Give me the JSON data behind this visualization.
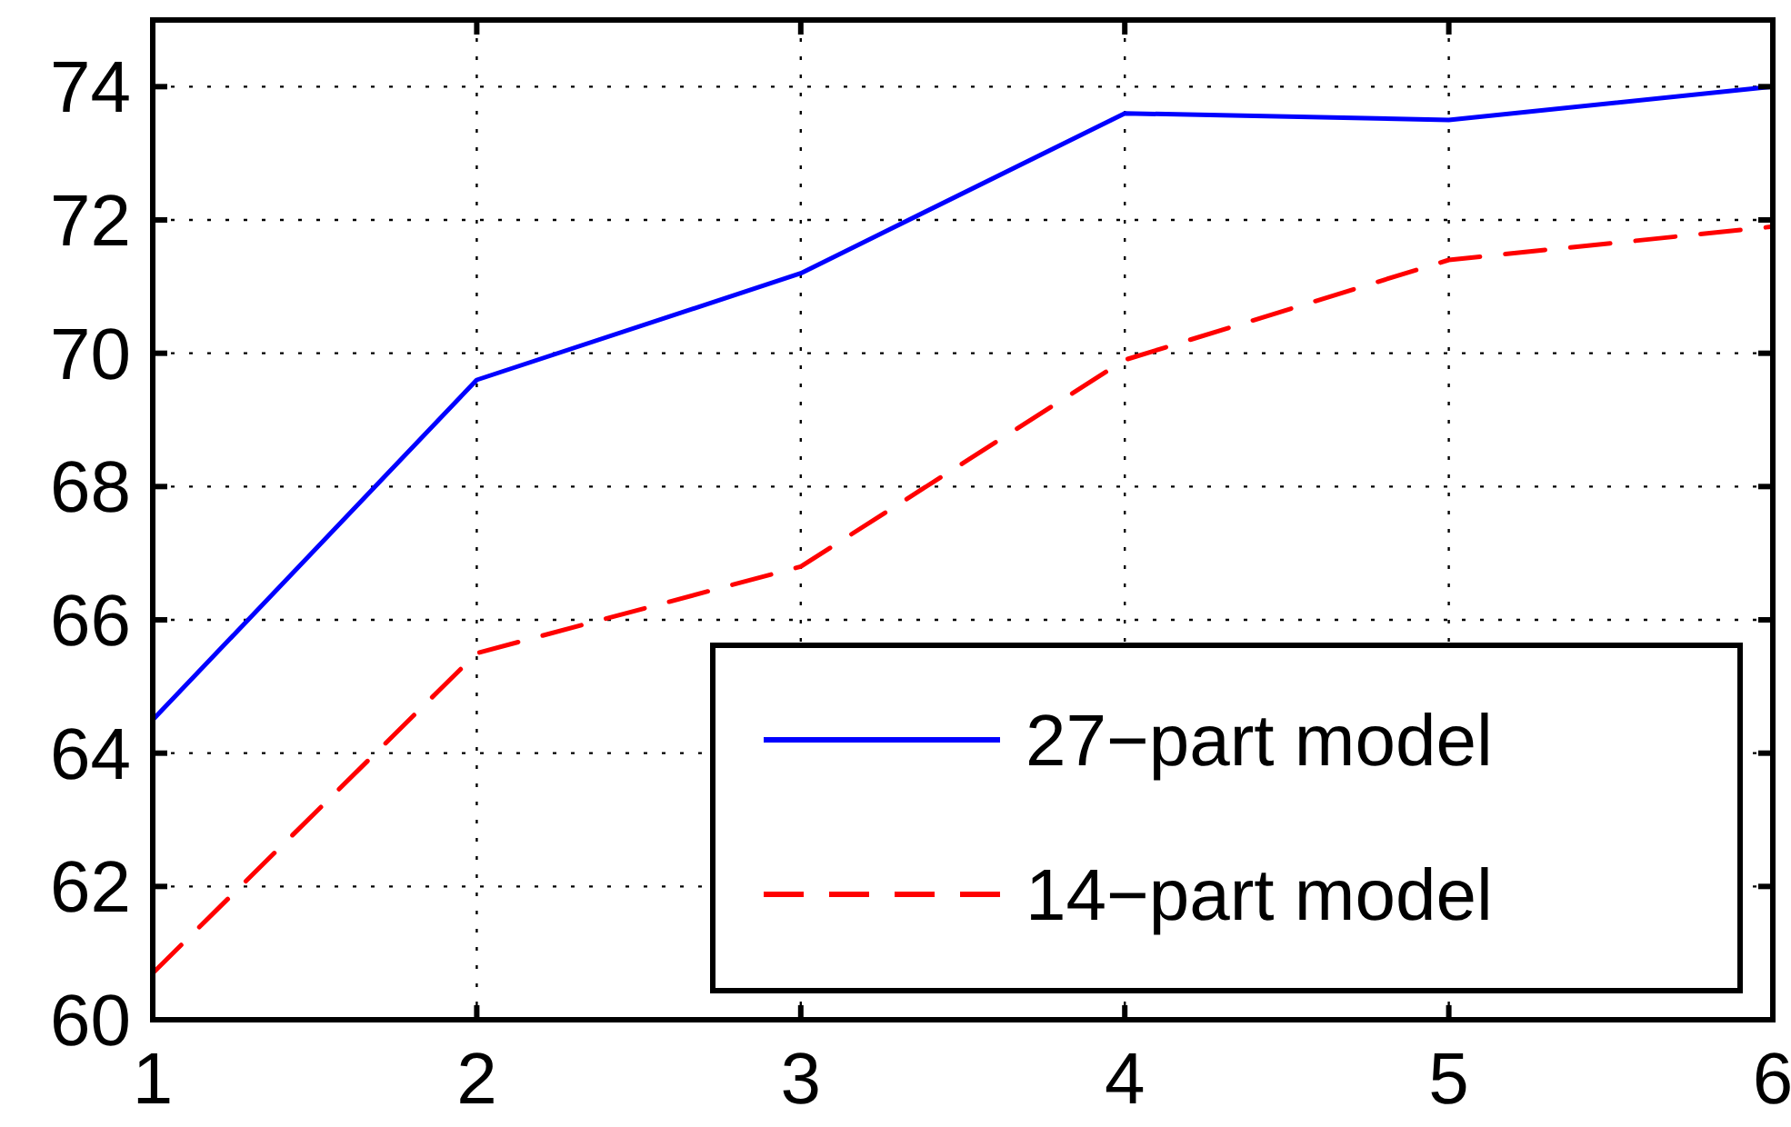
{
  "chart_data": {
    "type": "line",
    "x": [
      1,
      2,
      3,
      4,
      5,
      6
    ],
    "series": [
      {
        "name": "27−part model",
        "color": "#0000ff",
        "values": [
          64.5,
          69.6,
          71.2,
          73.6,
          73.5,
          74.0
        ],
        "line_style": "solid"
      },
      {
        "name": "14−part model",
        "color": "#ff0000",
        "values": [
          60.7,
          65.5,
          66.8,
          69.9,
          71.4,
          71.9
        ],
        "line_style": "dashed"
      }
    ],
    "xlim": [
      1,
      6
    ],
    "xticks": [
      1,
      2,
      3,
      4,
      5,
      6
    ],
    "ylim": [
      60,
      75
    ],
    "yticks": [
      60,
      62,
      64,
      66,
      68,
      70,
      72,
      74
    ],
    "grid": true,
    "legend": "bottom right",
    "marker": "none"
  }
}
